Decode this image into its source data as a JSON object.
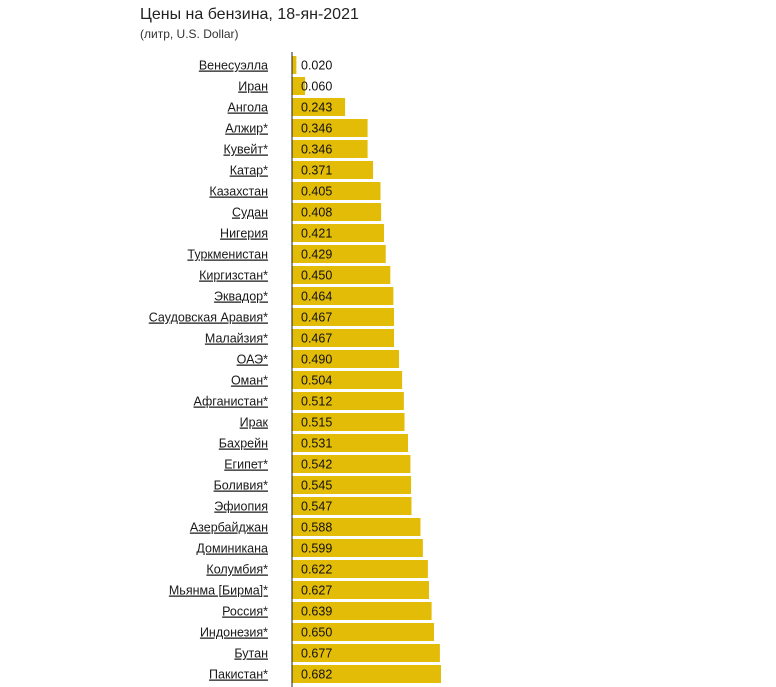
{
  "chart_data": {
    "type": "bar",
    "orientation": "horizontal",
    "title": "Цены на бензина, 18-ян-2021",
    "subtitle": "(литр, U.S. Dollar)",
    "categories": [
      "Венесуэлла",
      "Иран",
      "Ангола",
      "Алжир*",
      "Кувейт*",
      "Катар*",
      "Казахстан",
      "Судан",
      "Нигерия",
      "Туркменистан",
      "Киргизстан*",
      "Эквадор*",
      "Саудовская Аравия*",
      "Малайзия*",
      "ОАЭ*",
      "Оман*",
      "Афганистан*",
      "Ирак",
      "Бахрейн",
      "Египет*",
      "Боливия*",
      "Эфиопия",
      "Азербайджан",
      "Доминикана",
      "Колумбия*",
      "Мьянма [Бирма]*",
      "Россия*",
      "Индонезия*",
      "Бутан",
      "Пакистан*"
    ],
    "values": [
      0.02,
      0.06,
      0.243,
      0.346,
      0.346,
      0.371,
      0.405,
      0.408,
      0.421,
      0.429,
      0.45,
      0.464,
      0.467,
      0.467,
      0.49,
      0.504,
      0.512,
      0.515,
      0.531,
      0.542,
      0.545,
      0.547,
      0.588,
      0.599,
      0.622,
      0.627,
      0.639,
      0.65,
      0.677,
      0.682
    ],
    "value_labels": [
      "0.020",
      "0.060",
      "0.243",
      "0.346",
      "0.346",
      "0.371",
      "0.405",
      "0.408",
      "0.421",
      "0.429",
      "0.450",
      "0.464",
      "0.467",
      "0.467",
      "0.490",
      "0.504",
      "0.512",
      "0.515",
      "0.531",
      "0.542",
      "0.545",
      "0.547",
      "0.588",
      "0.599",
      "0.622",
      "0.627",
      "0.639",
      "0.650",
      "0.677",
      "0.682"
    ],
    "bar_color": "#e3bc08",
    "axis_color": "#222222",
    "xlim": [
      0,
      0.682
    ],
    "grid": false,
    "legend": "none"
  }
}
